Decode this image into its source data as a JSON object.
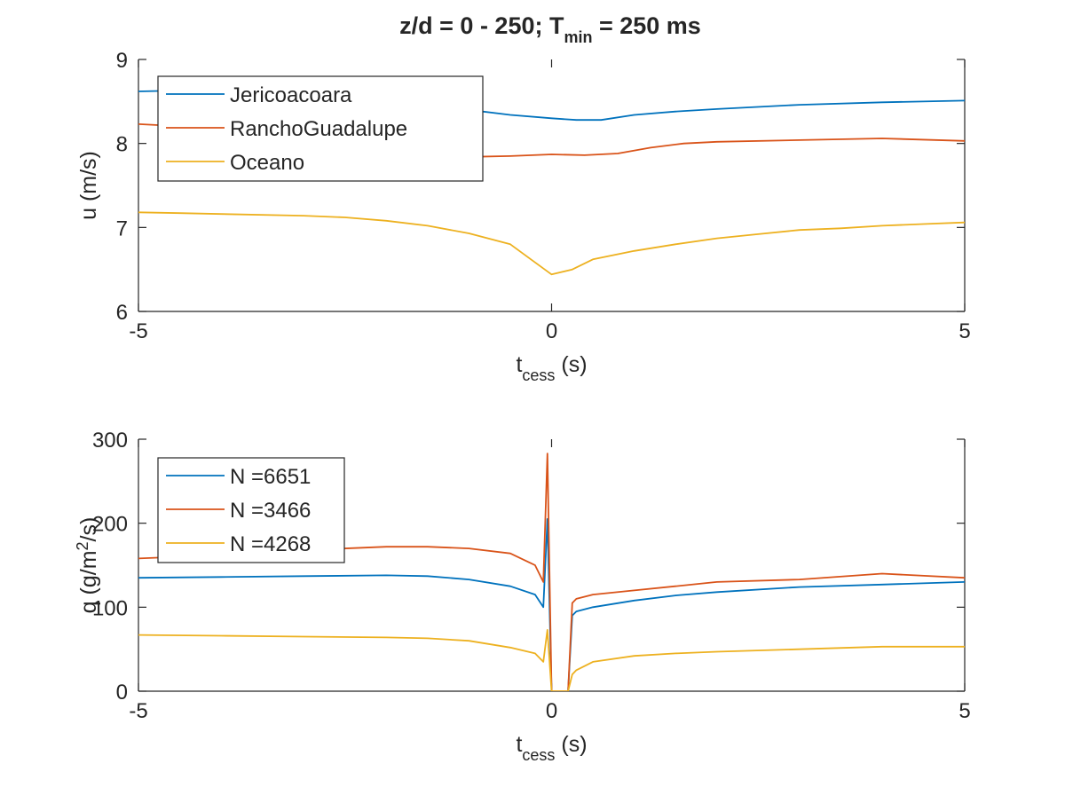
{
  "figure": {
    "title_main": "z/d = 0 - 250; T",
    "title_sub": "min",
    "title_tail": " = 250 ms"
  },
  "chart_data": [
    {
      "type": "line",
      "ylabel": "u (m/s)",
      "xlabel_main": "t",
      "xlabel_sub": "cess",
      "xlabel_tail": " (s)",
      "xlim": [
        -5,
        5
      ],
      "ylim": [
        6,
        9
      ],
      "xticks": [
        "-5",
        "0",
        "5"
      ],
      "yticks": [
        "6",
        "7",
        "8",
        "9"
      ],
      "legend_position": "top-left",
      "series": [
        {
          "name": "Jericoacoara",
          "color": "#0072BD",
          "x": [
            -5,
            -4,
            -3,
            -2,
            -1.5,
            -1,
            -0.5,
            0,
            0.3,
            0.6,
            1,
            1.5,
            2,
            3,
            4,
            5
          ],
          "y": [
            8.62,
            8.64,
            8.6,
            8.52,
            8.47,
            8.4,
            8.34,
            8.3,
            8.28,
            8.28,
            8.34,
            8.38,
            8.41,
            8.46,
            8.49,
            8.51
          ]
        },
        {
          "name": "RanchoGuadalupe",
          "color": "#D95319",
          "x": [
            -5,
            -4,
            -3,
            -2,
            -1.5,
            -1,
            -0.5,
            0,
            0.4,
            0.8,
            1.2,
            1.6,
            2,
            3,
            4,
            5
          ],
          "y": [
            8.23,
            8.18,
            8.08,
            7.95,
            7.89,
            7.84,
            7.85,
            7.87,
            7.86,
            7.88,
            7.95,
            8.0,
            8.02,
            8.04,
            8.06,
            8.03
          ]
        },
        {
          "name": "Oceano",
          "color": "#EDB120",
          "x": [
            -5,
            -4.5,
            -4,
            -3,
            -2.5,
            -2,
            -1.5,
            -1,
            -0.5,
            -0.25,
            0,
            0.25,
            0.5,
            1,
            1.5,
            2,
            2.5,
            3,
            3.5,
            4,
            4.5,
            5
          ],
          "y": [
            7.18,
            7.17,
            7.16,
            7.14,
            7.12,
            7.08,
            7.02,
            6.93,
            6.8,
            6.62,
            6.44,
            6.5,
            6.62,
            6.72,
            6.8,
            6.87,
            6.92,
            6.97,
            6.99,
            7.02,
            7.04,
            7.06
          ]
        }
      ]
    },
    {
      "type": "line",
      "ylabel": "q (g/m",
      "ylabel_sup": "2",
      "ylabel_tail": "/s)",
      "xlabel_main": "t",
      "xlabel_sub": "cess",
      "xlabel_tail": " (s)",
      "xlim": [
        -5,
        5
      ],
      "ylim": [
        0,
        300
      ],
      "xticks": [
        "-5",
        "0",
        "5"
      ],
      "yticks": [
        "0",
        "100",
        "200",
        "300"
      ],
      "legend_position": "top-left",
      "series": [
        {
          "name": "N =6651",
          "color": "#0072BD",
          "x": [
            -5,
            -4,
            -3,
            -2,
            -1.5,
            -1,
            -0.5,
            -0.2,
            -0.1,
            -0.05,
            0,
            0.05,
            0.1,
            0.15,
            0.2,
            0.25,
            0.3,
            0.5,
            1,
            1.5,
            2,
            3,
            4,
            5
          ],
          "y": [
            135,
            136,
            137,
            138,
            137,
            133,
            125,
            115,
            100,
            205,
            0,
            0,
            0,
            0,
            0,
            90,
            95,
            100,
            108,
            114,
            118,
            124,
            127,
            130
          ]
        },
        {
          "name": "N =3466",
          "color": "#D95319",
          "x": [
            -5,
            -4,
            -3,
            -2,
            -1.5,
            -1,
            -0.5,
            -0.2,
            -0.1,
            -0.05,
            0,
            0.05,
            0.1,
            0.15,
            0.2,
            0.25,
            0.3,
            0.5,
            1,
            1.5,
            2,
            3,
            4,
            5
          ],
          "y": [
            158,
            162,
            168,
            172,
            172,
            170,
            164,
            150,
            130,
            283,
            0,
            0,
            0,
            0,
            0,
            105,
            110,
            115,
            120,
            125,
            130,
            133,
            140,
            135
          ]
        },
        {
          "name": "N =4268",
          "color": "#EDB120",
          "x": [
            -5,
            -4,
            -3,
            -2,
            -1.5,
            -1,
            -0.5,
            -0.2,
            -0.1,
            -0.05,
            0,
            0.05,
            0.1,
            0.15,
            0.2,
            0.25,
            0.3,
            0.5,
            1,
            1.5,
            2,
            3,
            4,
            5
          ],
          "y": [
            67,
            66,
            65,
            64,
            63,
            60,
            52,
            45,
            35,
            73,
            0,
            0,
            0,
            0,
            0,
            20,
            25,
            35,
            42,
            45,
            47,
            50,
            53,
            53
          ]
        }
      ]
    }
  ]
}
